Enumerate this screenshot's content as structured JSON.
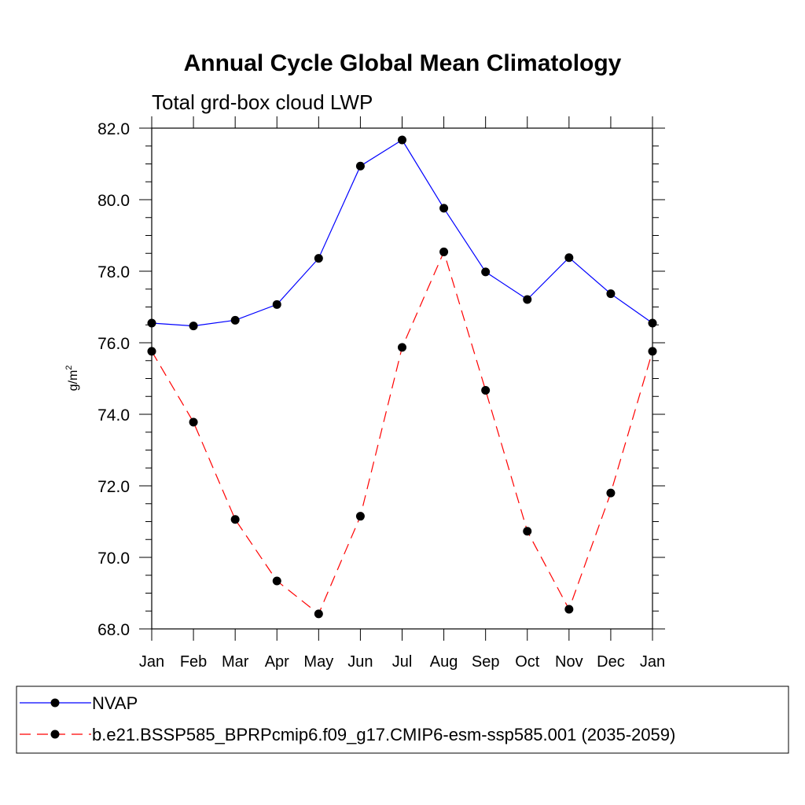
{
  "chart_data": {
    "type": "line",
    "title": "Annual Cycle Global Mean Climatology",
    "subtitle": "Total grd-box cloud LWP",
    "ylabel": "g/m",
    "ylabel_superscript": "2",
    "ylim": [
      68.0,
      82.0
    ],
    "yticks": [
      "68.0",
      "70.0",
      "72.0",
      "74.0",
      "76.0",
      "78.0",
      "80.0",
      "82.0"
    ],
    "categories": [
      "Jan",
      "Feb",
      "Mar",
      "Apr",
      "May",
      "Jun",
      "Jul",
      "Aug",
      "Sep",
      "Oct",
      "Nov",
      "Dec",
      "Jan"
    ],
    "grid": false,
    "legend_position": "bottom",
    "series": [
      {
        "name": "NVAP",
        "color": "#0000ff",
        "dash": "solid",
        "values": [
          76.55,
          76.47,
          76.63,
          77.07,
          78.36,
          80.94,
          81.67,
          79.76,
          77.98,
          77.21,
          78.38,
          77.37,
          76.55
        ]
      },
      {
        "name": "b.e21.BSSP585_BPRPcmip6.f09_g17.CMIP6-esm-ssp585.001 (2035-2059)",
        "color": "#ff0000",
        "dash": "dashed",
        "values": [
          75.76,
          73.78,
          71.06,
          69.34,
          68.42,
          71.15,
          75.87,
          78.54,
          74.67,
          70.73,
          68.55,
          71.8,
          75.76
        ]
      }
    ]
  }
}
